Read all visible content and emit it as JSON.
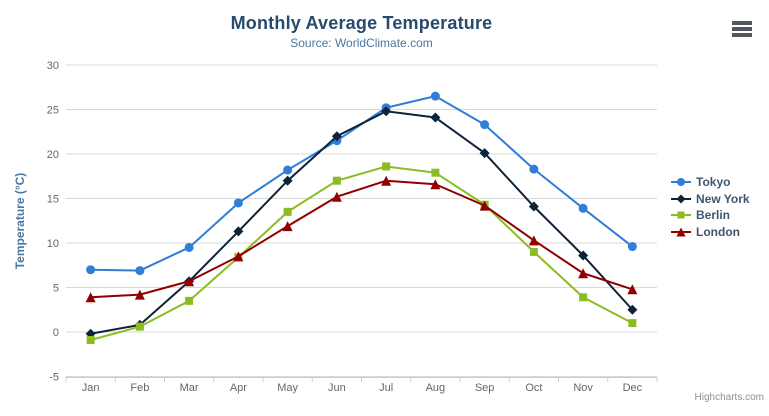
{
  "header": {
    "title": "Monthly Average Temperature",
    "subtitle": "Source: WorldClimate.com"
  },
  "toolbar": {
    "context_menu_icon": "hamburger-menu-icon"
  },
  "credits": "Highcharts.com",
  "colors": {
    "title": "#274b6d",
    "subtitle": "#4d759e",
    "axis_title": "#4d759e",
    "axis_labels": "#666666",
    "grid_line": "#d8d8d8",
    "axis_line": "#c0d0e0",
    "legend_text": "#3e576f",
    "credits_text": "#909090",
    "menu_icon": "#53585f",
    "background": "#ffffff"
  },
  "chart_data": {
    "type": "line",
    "title": "Monthly Average Temperature",
    "subtitle": "Source: WorldClimate.com",
    "xlabel": "",
    "ylabel": "Temperature (°C)",
    "categories": [
      "Jan",
      "Feb",
      "Mar",
      "Apr",
      "May",
      "Jun",
      "Jul",
      "Aug",
      "Sep",
      "Oct",
      "Nov",
      "Dec"
    ],
    "yticks": [
      30,
      25,
      20,
      15,
      10,
      5,
      0,
      -5
    ],
    "ylim": [
      -5,
      30
    ],
    "grid": true,
    "legend_position": "right",
    "series": [
      {
        "name": "Tokyo",
        "color": "#2f7ed8",
        "marker": "circle",
        "values": [
          7.0,
          6.9,
          9.5,
          14.5,
          18.2,
          21.5,
          25.2,
          26.5,
          23.3,
          18.3,
          13.9,
          9.6
        ]
      },
      {
        "name": "New York",
        "color": "#0d233a",
        "marker": "diamond",
        "values": [
          -0.2,
          0.8,
          5.7,
          11.3,
          17.0,
          22.0,
          24.8,
          24.1,
          20.1,
          14.1,
          8.6,
          2.5
        ]
      },
      {
        "name": "Berlin",
        "color": "#8bbc21",
        "marker": "square",
        "values": [
          -0.9,
          0.6,
          3.5,
          8.4,
          13.5,
          17.0,
          18.6,
          17.9,
          14.3,
          9.0,
          3.9,
          1.0
        ]
      },
      {
        "name": "London",
        "color": "#910000",
        "marker": "triangle",
        "values": [
          3.9,
          4.2,
          5.7,
          8.5,
          11.9,
          15.2,
          17.0,
          16.6,
          14.2,
          10.3,
          6.6,
          4.8
        ]
      }
    ]
  }
}
